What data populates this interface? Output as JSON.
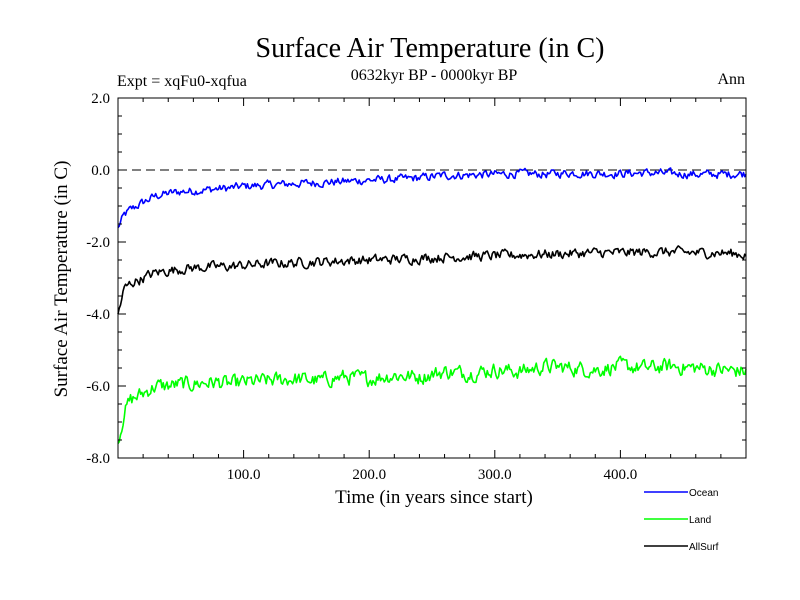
{
  "chart_data": {
    "type": "line",
    "title": "Surface Air Temperature (in C)",
    "subtitle": "0632kyr BP - 0000kyr BP",
    "expt_label": "Expt = xqFu0-xqfua",
    "period_label": "Ann",
    "xlabel": "Time (in years since start)",
    "ylabel": "Surface Air Temperature (in C)",
    "xlim": [
      0,
      500
    ],
    "ylim": [
      -8.0,
      2.0
    ],
    "xticks": [
      100,
      200,
      300,
      400
    ],
    "xtick_labels": [
      "100.0",
      "200.0",
      "300.0",
      "400.0"
    ],
    "yticks": [
      -8,
      -6,
      -4,
      -2,
      0,
      2
    ],
    "ytick_labels": [
      "-8.0",
      "-6.0",
      "-4.0",
      "-2.0",
      "0.0",
      "2.0"
    ],
    "reference_line": 0.0,
    "x": [
      0,
      5,
      10,
      20,
      30,
      40,
      50,
      60,
      70,
      80,
      90,
      100,
      120,
      140,
      160,
      180,
      200,
      220,
      240,
      260,
      280,
      300,
      320,
      340,
      360,
      380,
      400,
      420,
      440,
      460,
      480,
      500
    ],
    "series": [
      {
        "name": "Ocean",
        "color": "#0000ff",
        "values": [
          -1.6,
          -1.25,
          -1.1,
          -0.9,
          -0.72,
          -0.65,
          -0.6,
          -0.58,
          -0.55,
          -0.52,
          -0.5,
          -0.45,
          -0.42,
          -0.38,
          -0.35,
          -0.32,
          -0.28,
          -0.26,
          -0.22,
          -0.15,
          -0.14,
          -0.12,
          -0.1,
          -0.12,
          -0.08,
          -0.1,
          -0.1,
          -0.08,
          -0.1,
          -0.12,
          -0.12,
          -0.1
        ]
      },
      {
        "name": "Land",
        "color": "#00ff00",
        "values": [
          -7.6,
          -6.7,
          -6.4,
          -6.2,
          -6.0,
          -6.0,
          -5.95,
          -5.95,
          -5.9,
          -5.9,
          -5.95,
          -5.9,
          -5.85,
          -5.8,
          -5.85,
          -5.75,
          -5.8,
          -5.7,
          -5.75,
          -5.6,
          -5.65,
          -5.55,
          -5.6,
          -5.45,
          -5.5,
          -5.55,
          -5.45,
          -5.5,
          -5.45,
          -5.5,
          -5.55,
          -5.6
        ]
      },
      {
        "name": "AllSurf",
        "color": "#000000",
        "values": [
          -4.0,
          -3.3,
          -3.15,
          -3.0,
          -2.85,
          -2.8,
          -2.75,
          -2.72,
          -2.7,
          -2.68,
          -2.68,
          -2.65,
          -2.6,
          -2.58,
          -2.55,
          -2.52,
          -2.5,
          -2.48,
          -2.45,
          -2.42,
          -2.4,
          -2.38,
          -2.36,
          -2.34,
          -2.32,
          -2.3,
          -2.3,
          -2.28,
          -2.28,
          -2.3,
          -2.3,
          -2.35
        ]
      }
    ],
    "noise_amplitude": {
      "Ocean": 0.1,
      "Land": 0.18,
      "AllSurf": 0.12
    }
  }
}
